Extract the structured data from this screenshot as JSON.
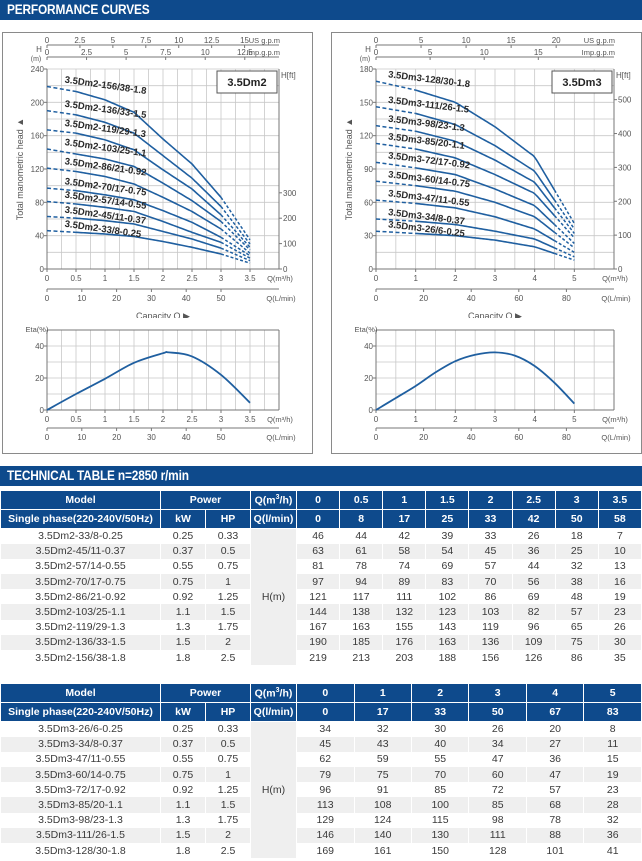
{
  "sections": {
    "performance_title": "PERFORMANCE CURVES",
    "technical_title": "TECHNICAL TABLE n=2850 r/min"
  },
  "chart_data": [
    {
      "type": "line",
      "id": "dm2-head",
      "title": "3.5Dm2",
      "ylabel": "Total manometric head ▲",
      "ylabel_top": "H",
      "ylabel_unit": "(m)",
      "y2label": "H[ft]",
      "xlabel": "Capacity Q ▶",
      "x_unit_m3h": "Q(m³/h)",
      "x_unit_lmin": "Q(L/min)",
      "top_axis1_unit": "US g.p.m",
      "top_axis2_unit": "Imp.g.p.m",
      "xlim": [
        0,
        4
      ],
      "ylim": [
        0,
        240
      ],
      "x_ticks": [
        "0",
        "0.5",
        "1",
        "1.5",
        "2",
        "2.5",
        "3",
        "3.5"
      ],
      "x_tick_values": [
        0,
        0.5,
        1,
        1.5,
        2,
        2.5,
        3,
        3.5
      ],
      "lmin_ticks": [
        "0",
        "10",
        "20",
        "30",
        "40",
        "50"
      ],
      "lmin_values": [
        0,
        10,
        20,
        30,
        40,
        50
      ],
      "us_gpm_ticks": [
        "0",
        "2.5",
        "5",
        "7.5",
        "10",
        "12.5",
        "15"
      ],
      "us_gpm_values": [
        0,
        2.5,
        5,
        7.5,
        10,
        12.5,
        15
      ],
      "imp_gpm_ticks": [
        "0",
        "2.5",
        "5",
        "7.5",
        "10",
        "12.5"
      ],
      "imp_gpm_values": [
        0,
        2.5,
        5,
        7.5,
        10,
        12.5
      ],
      "y_ticks": [
        "0",
        "40",
        "80",
        "120",
        "160",
        "200",
        "240"
      ],
      "y_tick_values": [
        0,
        40,
        80,
        120,
        160,
        200,
        240
      ],
      "y2_ticks": [
        "0",
        "100",
        "200",
        "300"
      ],
      "y2_tick_values": [
        0,
        100,
        200,
        300
      ],
      "grid": true,
      "x": [
        0,
        0.5,
        1,
        1.5,
        2,
        2.5,
        3,
        3.5
      ],
      "series": [
        {
          "name": "3.5Dm2-156/38-1.8",
          "values": [
            219,
            213,
            203,
            188,
            156,
            126,
            86,
            35
          ]
        },
        {
          "name": "3.5Dm2-136/33-1.5",
          "values": [
            190,
            185,
            176,
            163,
            136,
            109,
            75,
            30
          ]
        },
        {
          "name": "3.5Dm2-119/29-1.3",
          "values": [
            167,
            163,
            155,
            143,
            119,
            96,
            65,
            26
          ]
        },
        {
          "name": "3.5Dm2-103/25-1.1",
          "values": [
            144,
            138,
            132,
            123,
            103,
            82,
            57,
            23
          ]
        },
        {
          "name": "3.5Dm2-86/21-0.92",
          "values": [
            121,
            117,
            111,
            102,
            86,
            69,
            48,
            19
          ]
        },
        {
          "name": "3.5Dm2-70/17-0.75",
          "values": [
            97,
            94,
            89,
            83,
            70,
            56,
            38,
            16
          ]
        },
        {
          "name": "3.5Dm2-57/14-0.55",
          "values": [
            81,
            78,
            74,
            69,
            57,
            44,
            32,
            13
          ]
        },
        {
          "name": "3.5Dm2-45/11-0.37",
          "values": [
            63,
            61,
            58,
            54,
            45,
            36,
            25,
            10
          ]
        },
        {
          "name": "3.5Dm2-33/8-0.25",
          "values": [
            46,
            44,
            42,
            39,
            33,
            26,
            18,
            7
          ]
        }
      ]
    },
    {
      "type": "line",
      "id": "dm2-eta",
      "ylabel": "Eta(%)",
      "x_unit_m3h": "Q(m³/h)",
      "x_unit_lmin": "Q(L/min)",
      "xlim": [
        0,
        4
      ],
      "ylim": [
        0,
        50
      ],
      "x_ticks": [
        "0",
        "0.5",
        "1",
        "1.5",
        "2",
        "2.5",
        "3",
        "3.5"
      ],
      "x_tick_values": [
        0,
        0.5,
        1,
        1.5,
        2,
        2.5,
        3,
        3.5
      ],
      "lmin_ticks": [
        "0",
        "10",
        "20",
        "30",
        "40",
        "50"
      ],
      "lmin_values": [
        0,
        10,
        20,
        30,
        40,
        50
      ],
      "y_ticks": [
        "0",
        "20",
        "40"
      ],
      "y_tick_values": [
        0,
        20,
        40
      ],
      "grid": true,
      "series": [
        {
          "name": "Eta",
          "x": [
            0,
            0.5,
            1,
            1.5,
            2,
            2.1,
            2.5,
            3,
            3.5
          ],
          "values": [
            0,
            10,
            19.5,
            29.5,
            35.5,
            36,
            33.5,
            22,
            4.5
          ]
        }
      ]
    },
    {
      "type": "line",
      "id": "dm3-head",
      "title": "3.5Dm3",
      "ylabel": "Total manometric head ▲",
      "ylabel_top": "H",
      "ylabel_unit": "(m)",
      "y2label": "H[ft]",
      "xlabel": "Capacity Q ▶",
      "x_unit_m3h": "Q(m³/h)",
      "x_unit_lmin": "Q(L/min)",
      "top_axis1_unit": "US g.p.m",
      "top_axis2_unit": "Imp.g.p.m",
      "xlim": [
        0,
        6
      ],
      "ylim": [
        0,
        180
      ],
      "x_ticks": [
        "0",
        "1",
        "2",
        "3",
        "4",
        "5"
      ],
      "x_tick_values": [
        0,
        1,
        2,
        3,
        4,
        5
      ],
      "lmin_ticks": [
        "0",
        "20",
        "40",
        "60",
        "80"
      ],
      "lmin_values": [
        0,
        20,
        40,
        60,
        80
      ],
      "us_gpm_ticks": [
        "0",
        "5",
        "10",
        "15",
        "20"
      ],
      "us_gpm_values": [
        0,
        5,
        10,
        15,
        20
      ],
      "imp_gpm_ticks": [
        "0",
        "5",
        "10",
        "15"
      ],
      "imp_gpm_values": [
        0,
        5,
        10,
        15
      ],
      "y_ticks": [
        "0",
        "30",
        "60",
        "90",
        "120",
        "150",
        "180"
      ],
      "y_tick_values": [
        0,
        30,
        60,
        90,
        120,
        150,
        180
      ],
      "y2_ticks": [
        "0",
        "100",
        "200",
        "300",
        "400",
        "500"
      ],
      "y2_tick_values": [
        0,
        100,
        200,
        300,
        400,
        500
      ],
      "grid": true,
      "x": [
        0,
        1,
        2,
        3,
        4,
        5
      ],
      "series": [
        {
          "name": "3.5Dm3-128/30-1.8",
          "values": [
            169,
            161,
            150,
            128,
            101,
            41
          ]
        },
        {
          "name": "3.5Dm3-111/26-1.5",
          "values": [
            146,
            140,
            130,
            111,
            88,
            36
          ]
        },
        {
          "name": "3.5Dm3-98/23-1.3",
          "values": [
            129,
            124,
            115,
            98,
            78,
            32
          ]
        },
        {
          "name": "3.5Dm3-85/20-1.1",
          "values": [
            113,
            108,
            100,
            85,
            68,
            28
          ]
        },
        {
          "name": "3.5Dm3-72/17-0.92",
          "values": [
            96,
            91,
            85,
            72,
            57,
            23
          ]
        },
        {
          "name": "3.5Dm3-60/14-0.75",
          "values": [
            79,
            75,
            70,
            60,
            47,
            19
          ]
        },
        {
          "name": "3.5Dm3-47/11-0.55",
          "values": [
            62,
            59,
            55,
            47,
            36,
            15
          ]
        },
        {
          "name": "3.5Dm3-34/8-0.37",
          "values": [
            45,
            43,
            40,
            34,
            27,
            11
          ]
        },
        {
          "name": "3.5Dm3-26/6-0.25",
          "values": [
            34,
            32,
            30,
            26,
            20,
            8
          ]
        }
      ]
    },
    {
      "type": "line",
      "id": "dm3-eta",
      "ylabel": "Eta(%)",
      "x_unit_m3h": "Q(m³/h)",
      "x_unit_lmin": "Q(L/min)",
      "xlim": [
        0,
        6
      ],
      "ylim": [
        0,
        50
      ],
      "x_ticks": [
        "0",
        "1",
        "2",
        "3",
        "4",
        "5"
      ],
      "x_tick_values": [
        0,
        1,
        2,
        3,
        4,
        5
      ],
      "lmin_ticks": [
        "0",
        "20",
        "40",
        "60",
        "80"
      ],
      "lmin_values": [
        0,
        20,
        40,
        60,
        80
      ],
      "y_ticks": [
        "0",
        "20",
        "40"
      ],
      "y_tick_values": [
        0,
        20,
        40
      ],
      "grid": true,
      "series": [
        {
          "name": "Eta",
          "x": [
            0,
            0.5,
            1,
            1.5,
            2,
            2.5,
            3,
            3.5,
            4,
            4.5,
            5
          ],
          "values": [
            0,
            7.5,
            15,
            23.5,
            30.5,
            34.5,
            36,
            34,
            27.5,
            17,
            4
          ]
        }
      ]
    }
  ],
  "table1": {
    "h_model": "Model",
    "h_power": "Power",
    "h_q_m3h": "Q(m",
    "h_q_m3h_sup": "3",
    "h_q_m3h_end": "/h)",
    "h_phase": "Single phase(220-240V/50Hz)",
    "h_kw": "kW",
    "h_hp": "HP",
    "h_q_lmin": "Q(l/min)",
    "q_m3h": [
      "0",
      "0.5",
      "1",
      "1.5",
      "2",
      "2.5",
      "3",
      "3.5"
    ],
    "q_lmin": [
      "0",
      "8",
      "17",
      "25",
      "33",
      "42",
      "50",
      "58"
    ],
    "h_unit": "H(m)",
    "rows": [
      {
        "model": "3.5Dm2-33/8-0.25",
        "kw": "0.25",
        "hp": "0.33",
        "h": [
          "46",
          "44",
          "42",
          "39",
          "33",
          "26",
          "18",
          "7"
        ]
      },
      {
        "model": "3.5Dm2-45/11-0.37",
        "kw": "0.37",
        "hp": "0.5",
        "h": [
          "63",
          "61",
          "58",
          "54",
          "45",
          "36",
          "25",
          "10"
        ]
      },
      {
        "model": "3.5Dm2-57/14-0.55",
        "kw": "0.55",
        "hp": "0.75",
        "h": [
          "81",
          "78",
          "74",
          "69",
          "57",
          "44",
          "32",
          "13"
        ]
      },
      {
        "model": "3.5Dm2-70/17-0.75",
        "kw": "0.75",
        "hp": "1",
        "h": [
          "97",
          "94",
          "89",
          "83",
          "70",
          "56",
          "38",
          "16"
        ]
      },
      {
        "model": "3.5Dm2-86/21-0.92",
        "kw": "0.92",
        "hp": "1.25",
        "h": [
          "121",
          "117",
          "111",
          "102",
          "86",
          "69",
          "48",
          "19"
        ]
      },
      {
        "model": "3.5Dm2-103/25-1.1",
        "kw": "1.1",
        "hp": "1.5",
        "h": [
          "144",
          "138",
          "132",
          "123",
          "103",
          "82",
          "57",
          "23"
        ]
      },
      {
        "model": "3.5Dm2-119/29-1.3",
        "kw": "1.3",
        "hp": "1.75",
        "h": [
          "167",
          "163",
          "155",
          "143",
          "119",
          "96",
          "65",
          "26"
        ]
      },
      {
        "model": "3.5Dm2-136/33-1.5",
        "kw": "1.5",
        "hp": "2",
        "h": [
          "190",
          "185",
          "176",
          "163",
          "136",
          "109",
          "75",
          "30"
        ]
      },
      {
        "model": "3.5Dm2-156/38-1.8",
        "kw": "1.8",
        "hp": "2.5",
        "h": [
          "219",
          "213",
          "203",
          "188",
          "156",
          "126",
          "86",
          "35"
        ]
      }
    ]
  },
  "table2": {
    "h_model": "Model",
    "h_power": "Power",
    "h_q_m3h": "Q(m",
    "h_q_m3h_sup": "3",
    "h_q_m3h_end": "/h)",
    "h_phase": "Single phase(220-240V/50Hz)",
    "h_kw": "kW",
    "h_hp": "HP",
    "h_q_lmin": "Q(l/min)",
    "q_m3h": [
      "0",
      "1",
      "2",
      "3",
      "4",
      "5"
    ],
    "q_lmin": [
      "0",
      "17",
      "33",
      "50",
      "67",
      "83"
    ],
    "h_unit": "H(m)",
    "rows": [
      {
        "model": "3.5Dm3-26/6-0.25",
        "kw": "0.25",
        "hp": "0.33",
        "h": [
          "34",
          "32",
          "30",
          "26",
          "20",
          "8"
        ]
      },
      {
        "model": "3.5Dm3-34/8-0.37",
        "kw": "0.37",
        "hp": "0.5",
        "h": [
          "45",
          "43",
          "40",
          "34",
          "27",
          "11"
        ]
      },
      {
        "model": "3.5Dm3-47/11-0.55",
        "kw": "0.55",
        "hp": "0.75",
        "h": [
          "62",
          "59",
          "55",
          "47",
          "36",
          "15"
        ]
      },
      {
        "model": "3.5Dm3-60/14-0.75",
        "kw": "0.75",
        "hp": "1",
        "h": [
          "79",
          "75",
          "70",
          "60",
          "47",
          "19"
        ]
      },
      {
        "model": "3.5Dm3-72/17-0.92",
        "kw": "0.92",
        "hp": "1.25",
        "h": [
          "96",
          "91",
          "85",
          "72",
          "57",
          "23"
        ]
      },
      {
        "model": "3.5Dm3-85/20-1.1",
        "kw": "1.1",
        "hp": "1.5",
        "h": [
          "113",
          "108",
          "100",
          "85",
          "68",
          "28"
        ]
      },
      {
        "model": "3.5Dm3-98/23-1.3",
        "kw": "1.3",
        "hp": "1.75",
        "h": [
          "129",
          "124",
          "115",
          "98",
          "78",
          "32"
        ]
      },
      {
        "model": "3.5Dm3-111/26-1.5",
        "kw": "1.5",
        "hp": "2",
        "h": [
          "146",
          "140",
          "130",
          "111",
          "88",
          "36"
        ]
      },
      {
        "model": "3.5Dm3-128/30-1.8",
        "kw": "1.8",
        "hp": "2.5",
        "h": [
          "169",
          "161",
          "150",
          "128",
          "101",
          "41"
        ]
      }
    ]
  },
  "colors": {
    "brand_blue": "#0e4a8c",
    "curve_blue": "#1f5fa0",
    "grid": "#c8c8c8",
    "row_alt": "#efefef"
  }
}
